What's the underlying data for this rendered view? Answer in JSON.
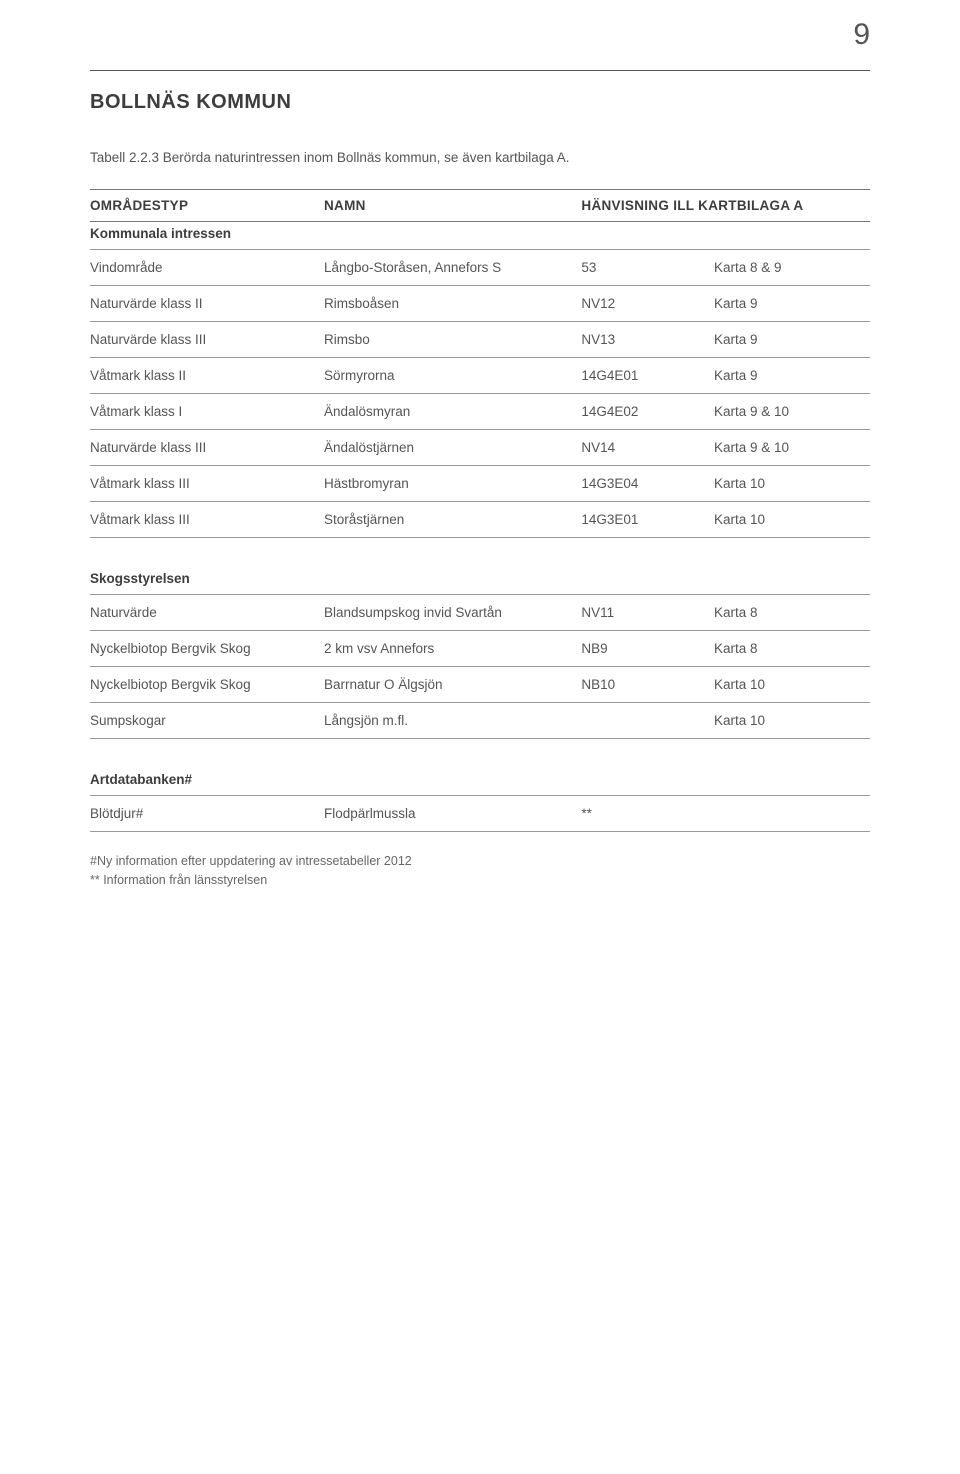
{
  "page_number": "9",
  "section_title": "BOLLNÄS KOMMUN",
  "caption": "Tabell 2.2.3 Berörda naturintressen inom Bollnäs kommun, se även kartbilaga A.",
  "columns": [
    "OMRÅDESTYP",
    "NAMN",
    "HÄNVISNING ILL KARTBILAGA A"
  ],
  "rows": [
    {
      "type": "section",
      "label": "Kommunala intressen"
    },
    {
      "type": "data",
      "c1": "Vindområde",
      "c2": "Långbo-Storåsen, Annefors S",
      "c3": "53",
      "c4": "Karta 8 & 9"
    },
    {
      "type": "data",
      "c1": "Naturvärde klass II",
      "c2": "Rimsboåsen",
      "c3": "NV12",
      "c4": "Karta 9"
    },
    {
      "type": "data",
      "c1": "Naturvärde klass III",
      "c2": "Rimsbo",
      "c3": "NV13",
      "c4": "Karta 9"
    },
    {
      "type": "data",
      "c1": "Våtmark klass II",
      "c2": "Sörmyrorna",
      "c3": "14G4E01",
      "c4": "Karta 9"
    },
    {
      "type": "data",
      "c1": "Våtmark klass I",
      "c2": "Ändalösmyran",
      "c3": "14G4E02",
      "c4": "Karta 9 & 10"
    },
    {
      "type": "data",
      "c1": "Naturvärde klass III",
      "c2": "Ändalöstjärnen",
      "c3": "NV14",
      "c4": "Karta 9 & 10"
    },
    {
      "type": "data",
      "c1": "Våtmark klass III",
      "c2": "Hästbromyran",
      "c3": "14G3E04",
      "c4": "Karta 10"
    },
    {
      "type": "data",
      "c1": "Våtmark klass III",
      "c2": "Storåstjärnen",
      "c3": "14G3E01",
      "c4": "Karta 10"
    },
    {
      "type": "section",
      "label": "Skogsstyrelsen"
    },
    {
      "type": "data",
      "c1": "Naturvärde",
      "c2": "Blandsumpskog invid Svartån",
      "c3": "NV11",
      "c4": "Karta 8"
    },
    {
      "type": "data",
      "c1": "Nyckelbiotop Bergvik Skog",
      "c2": "2 km vsv Annefors",
      "c3": "NB9",
      "c4": "Karta 8"
    },
    {
      "type": "data",
      "c1": "Nyckelbiotop Bergvik Skog",
      "c2": "Barrnatur O Älgsjön",
      "c3": "NB10",
      "c4": "Karta 10"
    },
    {
      "type": "data",
      "c1": "Sumpskogar",
      "c2": "Långsjön m.fl.",
      "c3": "",
      "c4": "Karta 10"
    },
    {
      "type": "section",
      "label": "Artdatabanken#"
    },
    {
      "type": "data",
      "c1": "Blötdjur#",
      "c2": "Flodpärlmussla",
      "c3": "**",
      "c4": ""
    }
  ],
  "footnote_line1": "#Ny information efter uppdatering av intressetabeller 2012",
  "footnote_line2": "** Information från länsstyrelsen"
}
